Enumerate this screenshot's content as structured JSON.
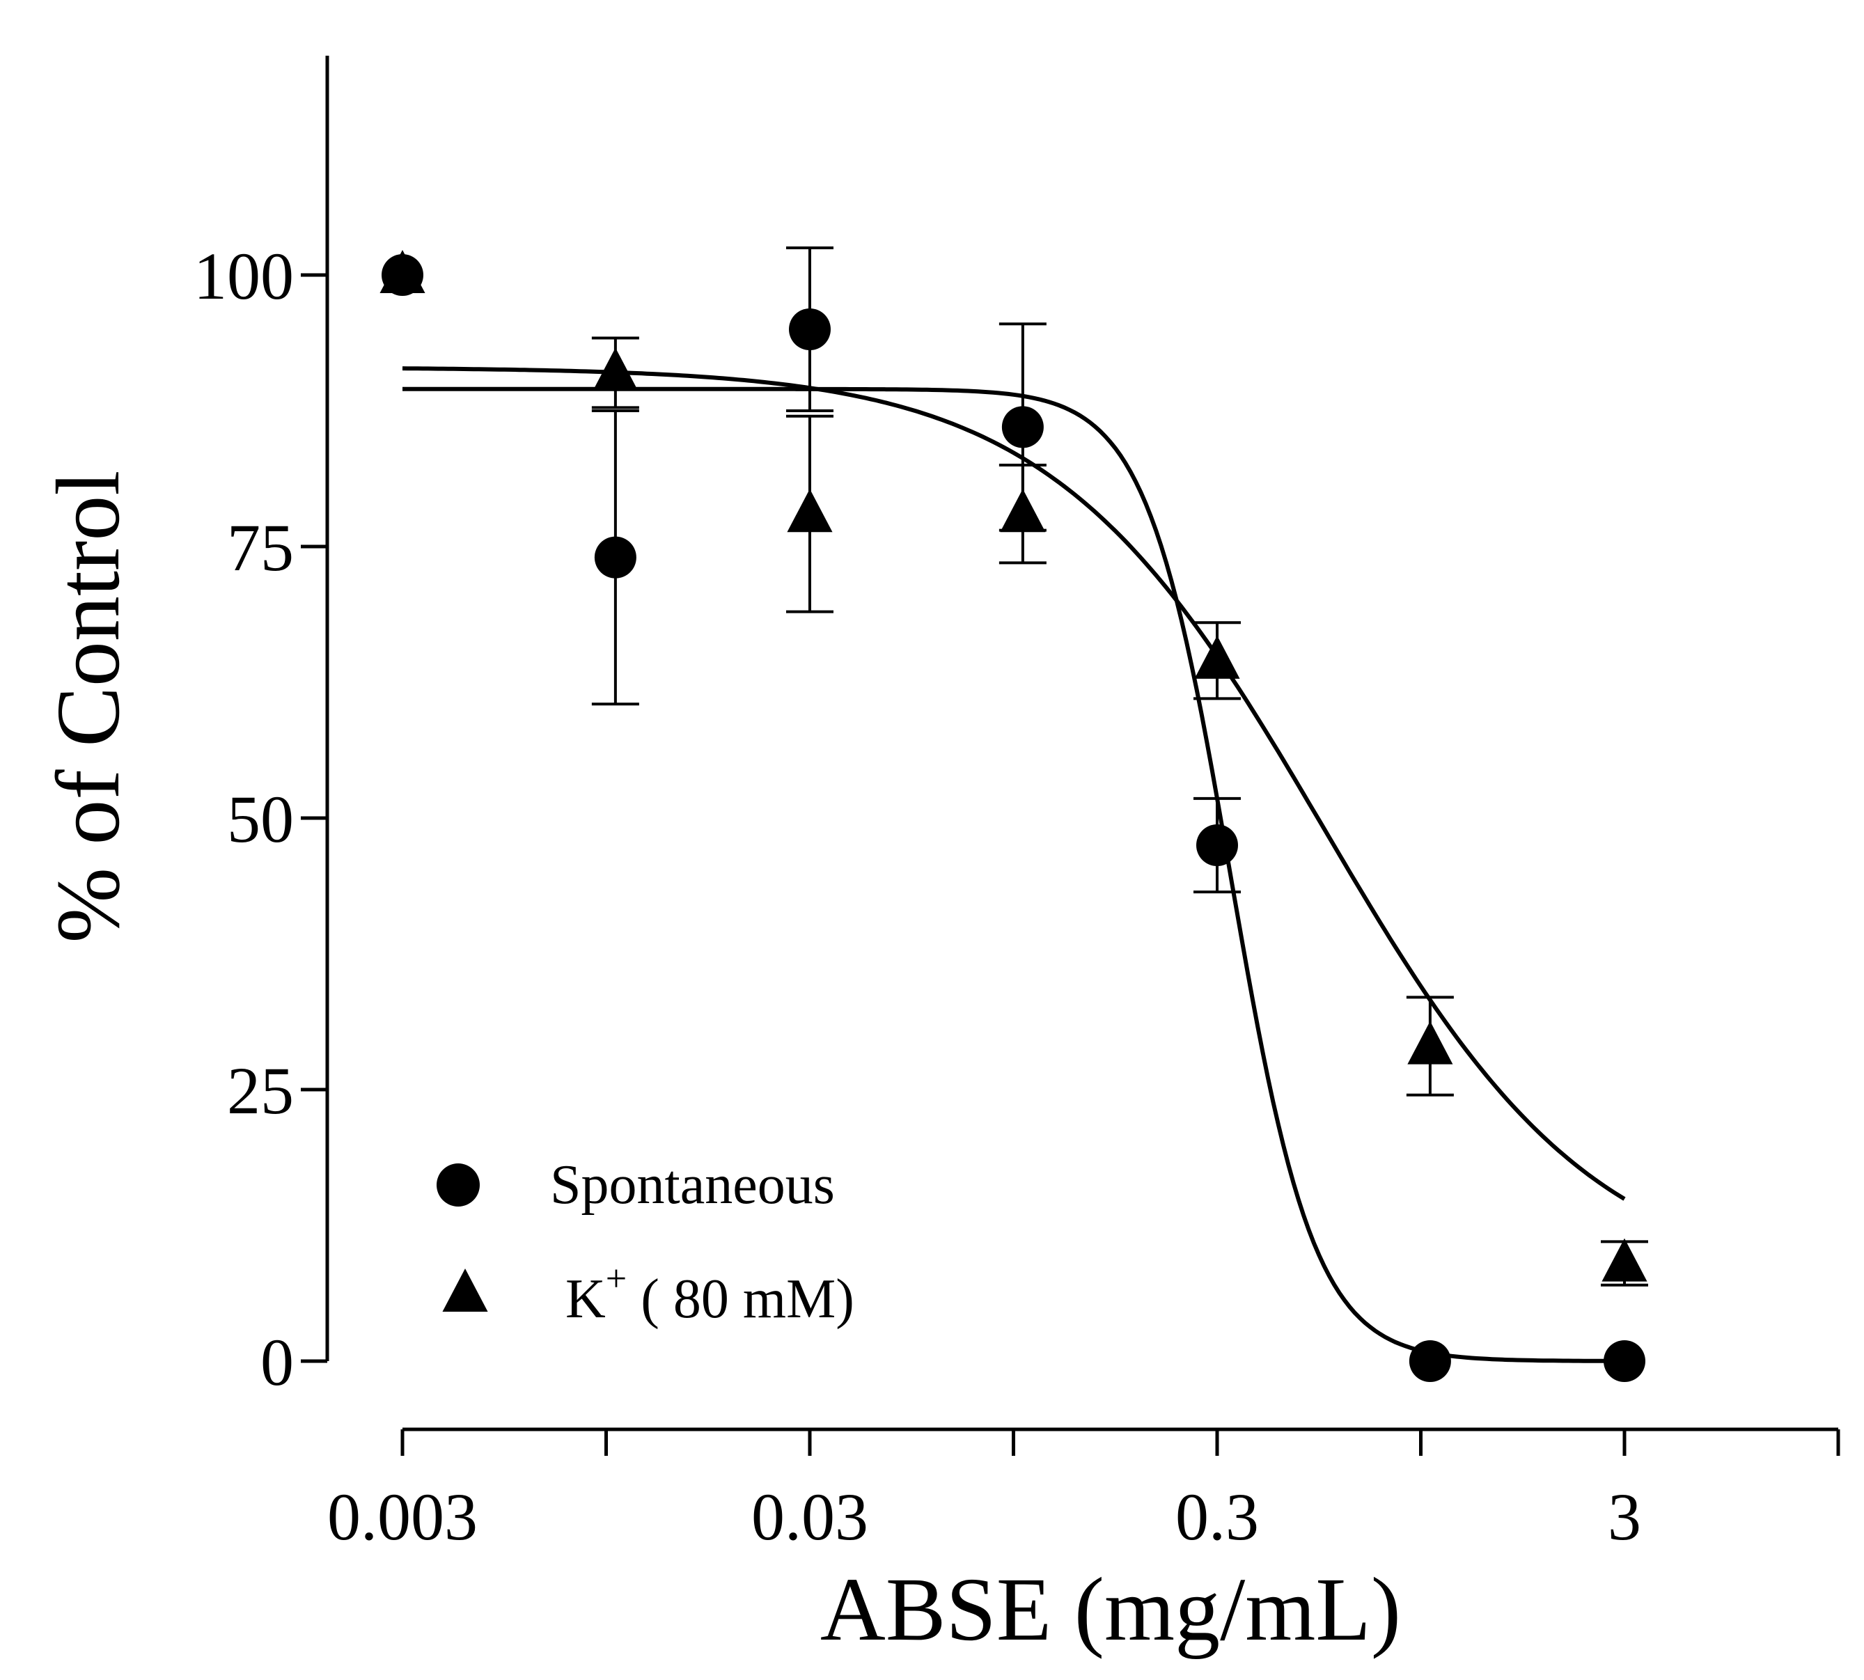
{
  "chart_data": {
    "type": "scatter",
    "title": "",
    "xlabel": "ABSE (mg/mL)",
    "ylabel": "% of Control",
    "xscale": "log",
    "xlim": [
      0.003,
      8.5
    ],
    "ylim": [
      -5,
      120
    ],
    "x_ticks": [
      0.003,
      0.03,
      0.3,
      3
    ],
    "x_tick_labels": [
      "0.003",
      "0.03",
      "0.3",
      "3"
    ],
    "y_ticks": [
      0,
      25,
      50,
      75,
      100
    ],
    "y_tick_labels": [
      "0",
      "25",
      "50",
      "75",
      "100"
    ],
    "legend_position": "bottom-left",
    "series": [
      {
        "name": "Spontaneous",
        "marker": "circle",
        "color": "#000000",
        "points": [
          {
            "x": 0.003,
            "y": 100
          },
          {
            "x": 0.01,
            "y": 74,
            "err": 13.5
          },
          {
            "x": 0.03,
            "y": 95,
            "err": 7.5
          },
          {
            "x": 0.1,
            "y": 86,
            "err": 9.5
          },
          {
            "x": 0.3,
            "y": 47.5,
            "err": 4.3
          },
          {
            "x": 1,
            "y": 0
          },
          {
            "x": 3,
            "y": 0
          }
        ],
        "fit": {
          "top": 89.5,
          "bottom": 0,
          "logEC50": -0.49,
          "hill": -4.2
        }
      },
      {
        "name": "K+ ( 80 mM)",
        "marker": "triangle",
        "color": "#000000",
        "points": [
          {
            "x": 0.003,
            "y": 100
          },
          {
            "x": 0.01,
            "y": 91,
            "err": 3.2
          },
          {
            "x": 0.03,
            "y": 78,
            "err": 9
          },
          {
            "x": 0.1,
            "y": 78,
            "err": 4.5
          },
          {
            "x": 0.3,
            "y": 64.5,
            "err": 3.5
          },
          {
            "x": 1,
            "y": 29,
            "err": 4.5
          },
          {
            "x": 3,
            "y": 9,
            "err": 2
          }
        ],
        "fit": {
          "top": 91.5,
          "bottom": 6.5,
          "logEC50": -0.26,
          "hill": -1.3
        }
      }
    ],
    "legend": [
      {
        "marker": "circle",
        "text": "Spontaneous"
      },
      {
        "marker": "triangle",
        "text_main": "K",
        "text_sup": "+",
        "text_rest": " ( 80 mM)"
      }
    ]
  }
}
